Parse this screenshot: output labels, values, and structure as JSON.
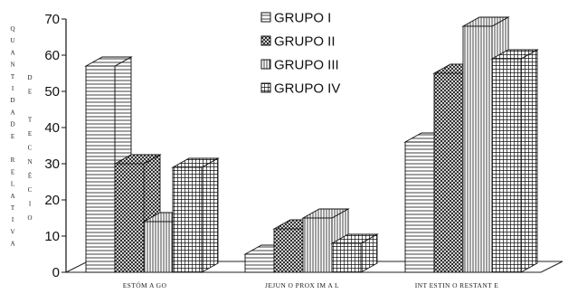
{
  "chart_data": {
    "type": "bar",
    "style": "3d-clustered",
    "ylabel_lines": [
      "QUANTIDADE RELATIVA",
      "DE TECNÉCIO"
    ],
    "yticks": [
      "0",
      "10",
      "20",
      "30",
      "40",
      "50",
      "60",
      "70"
    ],
    "ylim": [
      0,
      70
    ],
    "categories": [
      "ESTÔMAGO",
      "JEJUNO PROXIMAL",
      "INTESTINO RESTANTE"
    ],
    "category_labels": [
      "ESTÓM A GO",
      "JEJUN O PROX IM A L",
      "INT ESTIN O RESTANT E"
    ],
    "series": [
      {
        "name": "GRUPO I",
        "pattern": "horizontal-lines",
        "values": [
          57,
          5,
          36
        ]
      },
      {
        "name": "GRUPO II",
        "pattern": "crosshatch",
        "values": [
          30,
          12,
          55
        ]
      },
      {
        "name": "GRUPO III",
        "pattern": "vertical-lines",
        "values": [
          14,
          15,
          68
        ]
      },
      {
        "name": "GRUPO IV",
        "pattern": "grid",
        "values": [
          29,
          8,
          59
        ]
      }
    ],
    "legend_position": "top-center",
    "grid": false
  }
}
